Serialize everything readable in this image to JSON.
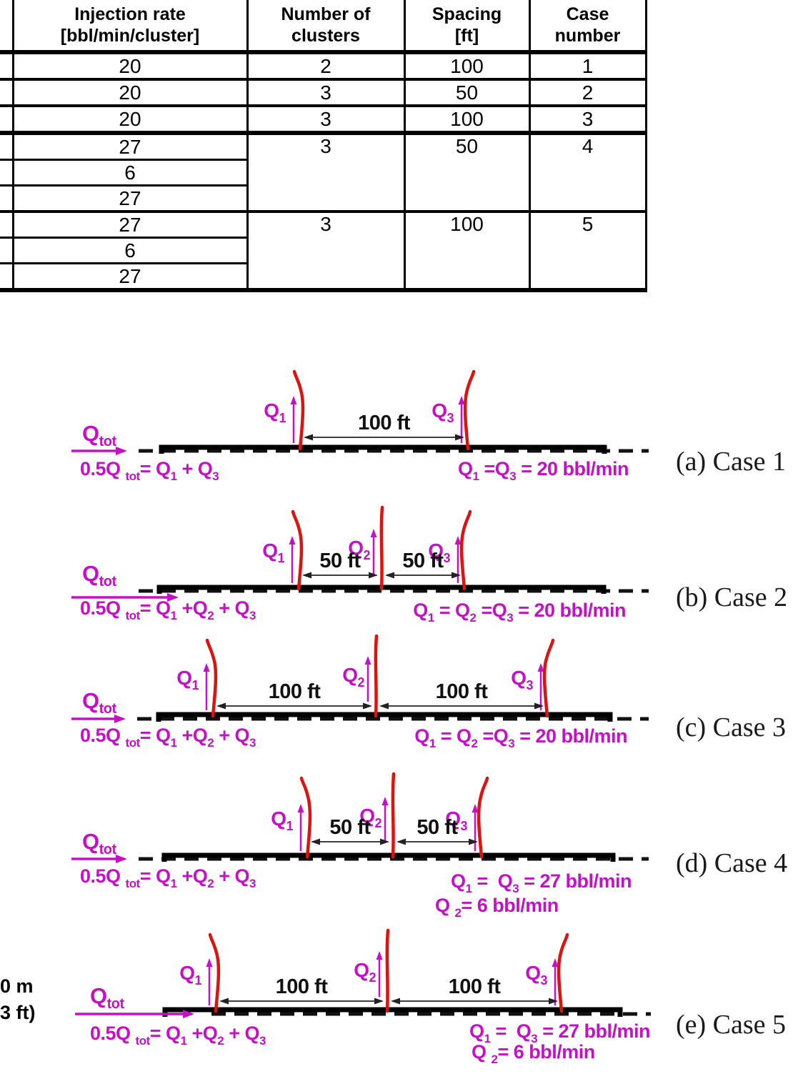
{
  "colors": {
    "magenta": "#c511c5",
    "red": "#da1510",
    "line_black": "#111111"
  },
  "table": {
    "headers": [
      {
        "line1": "Injection rate",
        "line2": "[bbl/min/cluster]"
      },
      {
        "line1": "Number of",
        "line2": "clusters"
      },
      {
        "line1": "Spacing",
        "line2": "[ft]"
      },
      {
        "line1": "Case",
        "line2": "number"
      }
    ],
    "groups": [
      {
        "rates": [
          "20"
        ],
        "clusters": "2",
        "spacing": "100",
        "case": "1"
      },
      {
        "rates": [
          "20"
        ],
        "clusters": "3",
        "spacing": "50",
        "case": "2"
      },
      {
        "rates": [
          "20"
        ],
        "clusters": "3",
        "spacing": "100",
        "case": "3"
      },
      {
        "rates": [
          "27",
          "6",
          "27"
        ],
        "clusters": "3",
        "spacing": "50",
        "case": "4"
      },
      {
        "rates": [
          "27",
          "6",
          "27"
        ],
        "clusters": "3",
        "spacing": "100",
        "case": "5"
      }
    ]
  },
  "side_note": {
    "line1": "0 m",
    "line2": "3 ft)"
  },
  "diagrams": [
    {
      "id": "a",
      "caption": "(a) Case 1",
      "qtot": [
        {
          "t": "Q"
        },
        {
          "s": "tot"
        }
      ],
      "fracture_labels": [
        [
          {
            "t": "Q"
          },
          {
            "s": "1"
          }
        ],
        [
          {
            "t": "Q"
          },
          {
            "s": "3"
          }
        ]
      ],
      "spacing_texts": [
        "100 ft"
      ],
      "left_formula": [
        {
          "t": "0.5Q "
        },
        {
          "s": "tot"
        },
        {
          "t": "= Q"
        },
        {
          "s": "1"
        },
        {
          "t": " + Q"
        },
        {
          "s": "3"
        }
      ],
      "right_lines": [
        [
          {
            "t": "Q"
          },
          {
            "s": "1"
          },
          {
            "t": " =Q"
          },
          {
            "s": "3"
          },
          {
            "t": " = 20 bbl/min"
          }
        ]
      ]
    },
    {
      "id": "b",
      "caption": "(b) Case 2",
      "qtot": [
        {
          "t": "Q"
        },
        {
          "s": "tot"
        }
      ],
      "fracture_labels": [
        [
          {
            "t": "Q"
          },
          {
            "s": "1"
          }
        ],
        [
          {
            "t": "Q"
          },
          {
            "s": "2"
          }
        ],
        [
          {
            "t": "Q"
          },
          {
            "s": "3"
          }
        ]
      ],
      "spacing_texts": [
        "50 ft",
        "50 ft"
      ],
      "left_formula": [
        {
          "t": "0.5Q "
        },
        {
          "s": "tot"
        },
        {
          "t": "= Q"
        },
        {
          "s": "1"
        },
        {
          "t": " +Q"
        },
        {
          "s": "2"
        },
        {
          "t": " + Q"
        },
        {
          "s": "3"
        }
      ],
      "right_lines": [
        [
          {
            "t": "Q"
          },
          {
            "s": "1"
          },
          {
            "t": " = Q"
          },
          {
            "s": "2"
          },
          {
            "t": " =Q"
          },
          {
            "s": "3"
          },
          {
            "t": " = 20 bbl/min"
          }
        ]
      ]
    },
    {
      "id": "c",
      "caption": "(c) Case 3",
      "qtot": [
        {
          "t": "Q"
        },
        {
          "s": "tot"
        }
      ],
      "fracture_labels": [
        [
          {
            "t": "Q"
          },
          {
            "s": "1"
          }
        ],
        [
          {
            "t": "Q"
          },
          {
            "s": "2"
          }
        ],
        [
          {
            "t": "Q"
          },
          {
            "s": "3"
          }
        ]
      ],
      "spacing_texts": [
        "100 ft",
        "100 ft"
      ],
      "left_formula": [
        {
          "t": "0.5Q "
        },
        {
          "s": "tot"
        },
        {
          "t": "= Q"
        },
        {
          "s": "1"
        },
        {
          "t": " +Q"
        },
        {
          "s": "2"
        },
        {
          "t": " + Q"
        },
        {
          "s": "3"
        }
      ],
      "right_lines": [
        [
          {
            "t": "Q"
          },
          {
            "s": "1"
          },
          {
            "t": " = Q"
          },
          {
            "s": "2"
          },
          {
            "t": " =Q"
          },
          {
            "s": "3"
          },
          {
            "t": " = 20 bbl/min"
          }
        ]
      ]
    },
    {
      "id": "d",
      "caption": "(d) Case 4",
      "qtot": [
        {
          "t": "Q"
        },
        {
          "s": "tot"
        }
      ],
      "fracture_labels": [
        [
          {
            "t": "Q"
          },
          {
            "s": "1"
          }
        ],
        [
          {
            "t": "Q"
          },
          {
            "s": "2"
          }
        ],
        [
          {
            "t": "Q"
          },
          {
            "s": "3"
          }
        ]
      ],
      "spacing_texts": [
        "50 ft",
        "50 ft"
      ],
      "left_formula": [
        {
          "t": "0.5Q "
        },
        {
          "s": "tot"
        },
        {
          "t": "= Q"
        },
        {
          "s": "1"
        },
        {
          "t": " +Q"
        },
        {
          "s": "2"
        },
        {
          "t": " + Q"
        },
        {
          "s": "3"
        }
      ],
      "right_lines": [
        [
          {
            "t": "Q"
          },
          {
            "s": "1"
          },
          {
            "t": " =  Q"
          },
          {
            "s": "3"
          },
          {
            "t": " = 27 bbl/min"
          }
        ],
        [
          {
            "t": "Q "
          },
          {
            "s": "2"
          },
          {
            "t": "= 6 bbl/min"
          }
        ]
      ]
    },
    {
      "id": "e",
      "caption": "(e) Case 5",
      "qtot": [
        {
          "t": "Q"
        },
        {
          "s": "tot"
        }
      ],
      "fracture_labels": [
        [
          {
            "t": "Q"
          },
          {
            "s": "1"
          }
        ],
        [
          {
            "t": "Q"
          },
          {
            "s": "2"
          }
        ],
        [
          {
            "t": "Q"
          },
          {
            "s": "3"
          }
        ]
      ],
      "spacing_texts": [
        "100 ft",
        "100 ft"
      ],
      "left_formula": [
        {
          "t": "0.5Q "
        },
        {
          "s": "tot"
        },
        {
          "t": "= Q"
        },
        {
          "s": "1"
        },
        {
          "t": " +Q"
        },
        {
          "s": "2"
        },
        {
          "t": " + Q"
        },
        {
          "s": "3"
        }
      ],
      "right_lines": [
        [
          {
            "t": "Q"
          },
          {
            "s": "1"
          },
          {
            "t": " =  Q"
          },
          {
            "s": "3"
          },
          {
            "t": " = 27 bbl/min"
          }
        ],
        [
          {
            "t": "Q "
          },
          {
            "s": "2"
          },
          {
            "t": "= 6 bbl/min"
          }
        ]
      ]
    }
  ]
}
